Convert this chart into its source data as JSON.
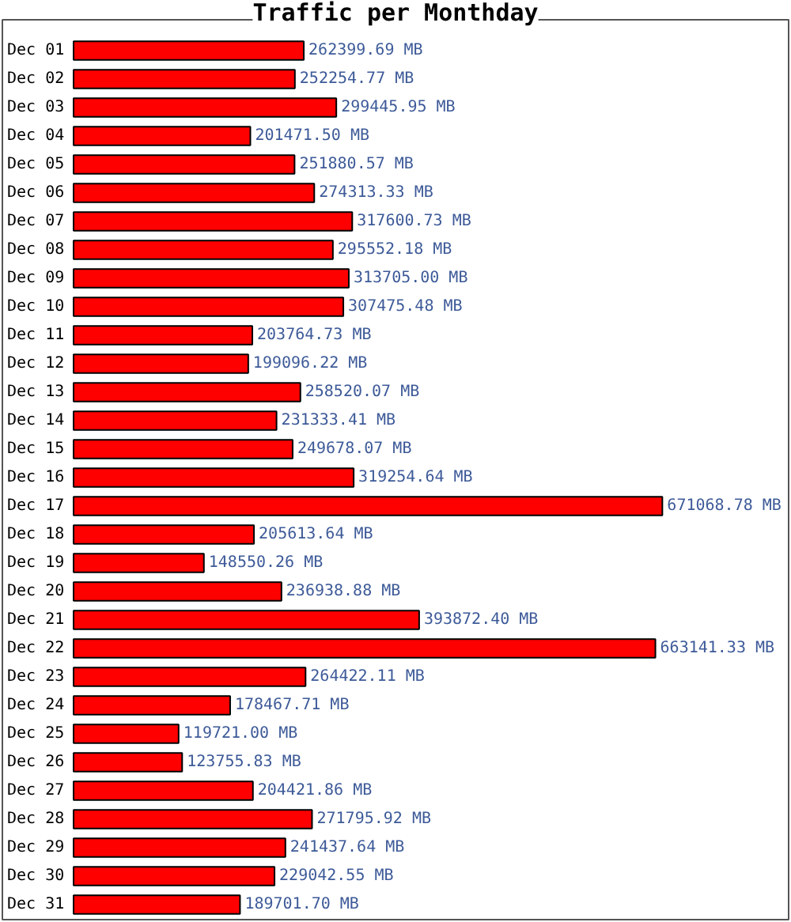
{
  "chart_data": {
    "type": "bar",
    "orientation": "horizontal",
    "title": "Traffic per Monthday",
    "categories": [
      "Dec 01",
      "Dec 02",
      "Dec 03",
      "Dec 04",
      "Dec 05",
      "Dec 06",
      "Dec 07",
      "Dec 08",
      "Dec 09",
      "Dec 10",
      "Dec 11",
      "Dec 12",
      "Dec 13",
      "Dec 14",
      "Dec 15",
      "Dec 16",
      "Dec 17",
      "Dec 18",
      "Dec 19",
      "Dec 20",
      "Dec 21",
      "Dec 22",
      "Dec 23",
      "Dec 24",
      "Dec 25",
      "Dec 26",
      "Dec 27",
      "Dec 28",
      "Dec 29",
      "Dec 30",
      "Dec 31"
    ],
    "values": [
      262399.69,
      252254.77,
      299445.95,
      201471.5,
      251880.57,
      274313.33,
      317600.73,
      295552.18,
      313705.0,
      307475.48,
      203764.73,
      199096.22,
      258520.07,
      231333.41,
      249678.07,
      319254.64,
      671068.78,
      205613.64,
      148550.26,
      236938.88,
      393872.4,
      663141.33,
      264422.11,
      178467.71,
      119721.0,
      123755.83,
      204421.86,
      271795.92,
      241437.64,
      229042.55,
      189701.7
    ],
    "value_labels": [
      "262399.69 MB",
      "252254.77 MB",
      "299445.95 MB",
      "201471.50 MB",
      "251880.57 MB",
      "274313.33 MB",
      "317600.73 MB",
      "295552.18 MB",
      "313705.00 MB",
      "307475.48 MB",
      "203764.73 MB",
      "199096.22 MB",
      "258520.07 MB",
      "231333.41 MB",
      "249678.07 MB",
      "319254.64 MB",
      "671068.78 MB",
      "205613.64 MB",
      "148550.26 MB",
      "236938.88 MB",
      "393872.40 MB",
      "663141.33 MB",
      "264422.11 MB",
      "178467.71 MB",
      "119721.00 MB",
      "123755.83 MB",
      "204421.86 MB",
      "271795.92 MB",
      "241437.64 MB",
      "229042.55 MB",
      "189701.70 MB"
    ],
    "color": "#ff0000",
    "xlim": [
      0,
      815000
    ],
    "tick_labels": "y"
  }
}
